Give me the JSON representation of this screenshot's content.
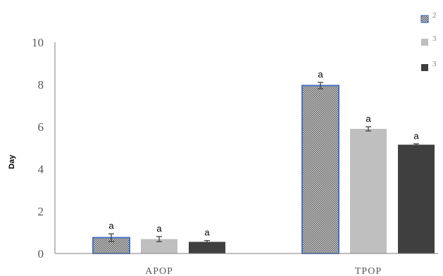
{
  "chart_data": {
    "type": "bar",
    "title": "",
    "xlabel": "",
    "ylabel": "Day",
    "ylim": [
      0,
      10
    ],
    "yticks": [
      0,
      2,
      4,
      6,
      8,
      10
    ],
    "categories": [
      "APOP",
      "TPOP"
    ],
    "grid": false,
    "legend_position": "top-right",
    "series": [
      {
        "name": "2",
        "values": [
          0.75,
          7.95
        ],
        "errors": [
          0.18,
          0.15
        ],
        "letters": [
          "a",
          "a"
        ],
        "color": "#8c8c8c",
        "pattern": "dotted",
        "outline": "#4472c4"
      },
      {
        "name": "3",
        "values": [
          0.68,
          5.9
        ],
        "errors": [
          0.12,
          0.1
        ],
        "letters": [
          "a",
          "a"
        ],
        "color": "#bfbfbf",
        "pattern": "solid",
        "outline": ""
      },
      {
        "name": "3",
        "values": [
          0.55,
          5.15
        ],
        "errors": [
          0.06,
          0.04
        ],
        "letters": [
          "a",
          "a"
        ],
        "color": "#3f3f3f",
        "pattern": "solid",
        "outline": ""
      }
    ]
  }
}
